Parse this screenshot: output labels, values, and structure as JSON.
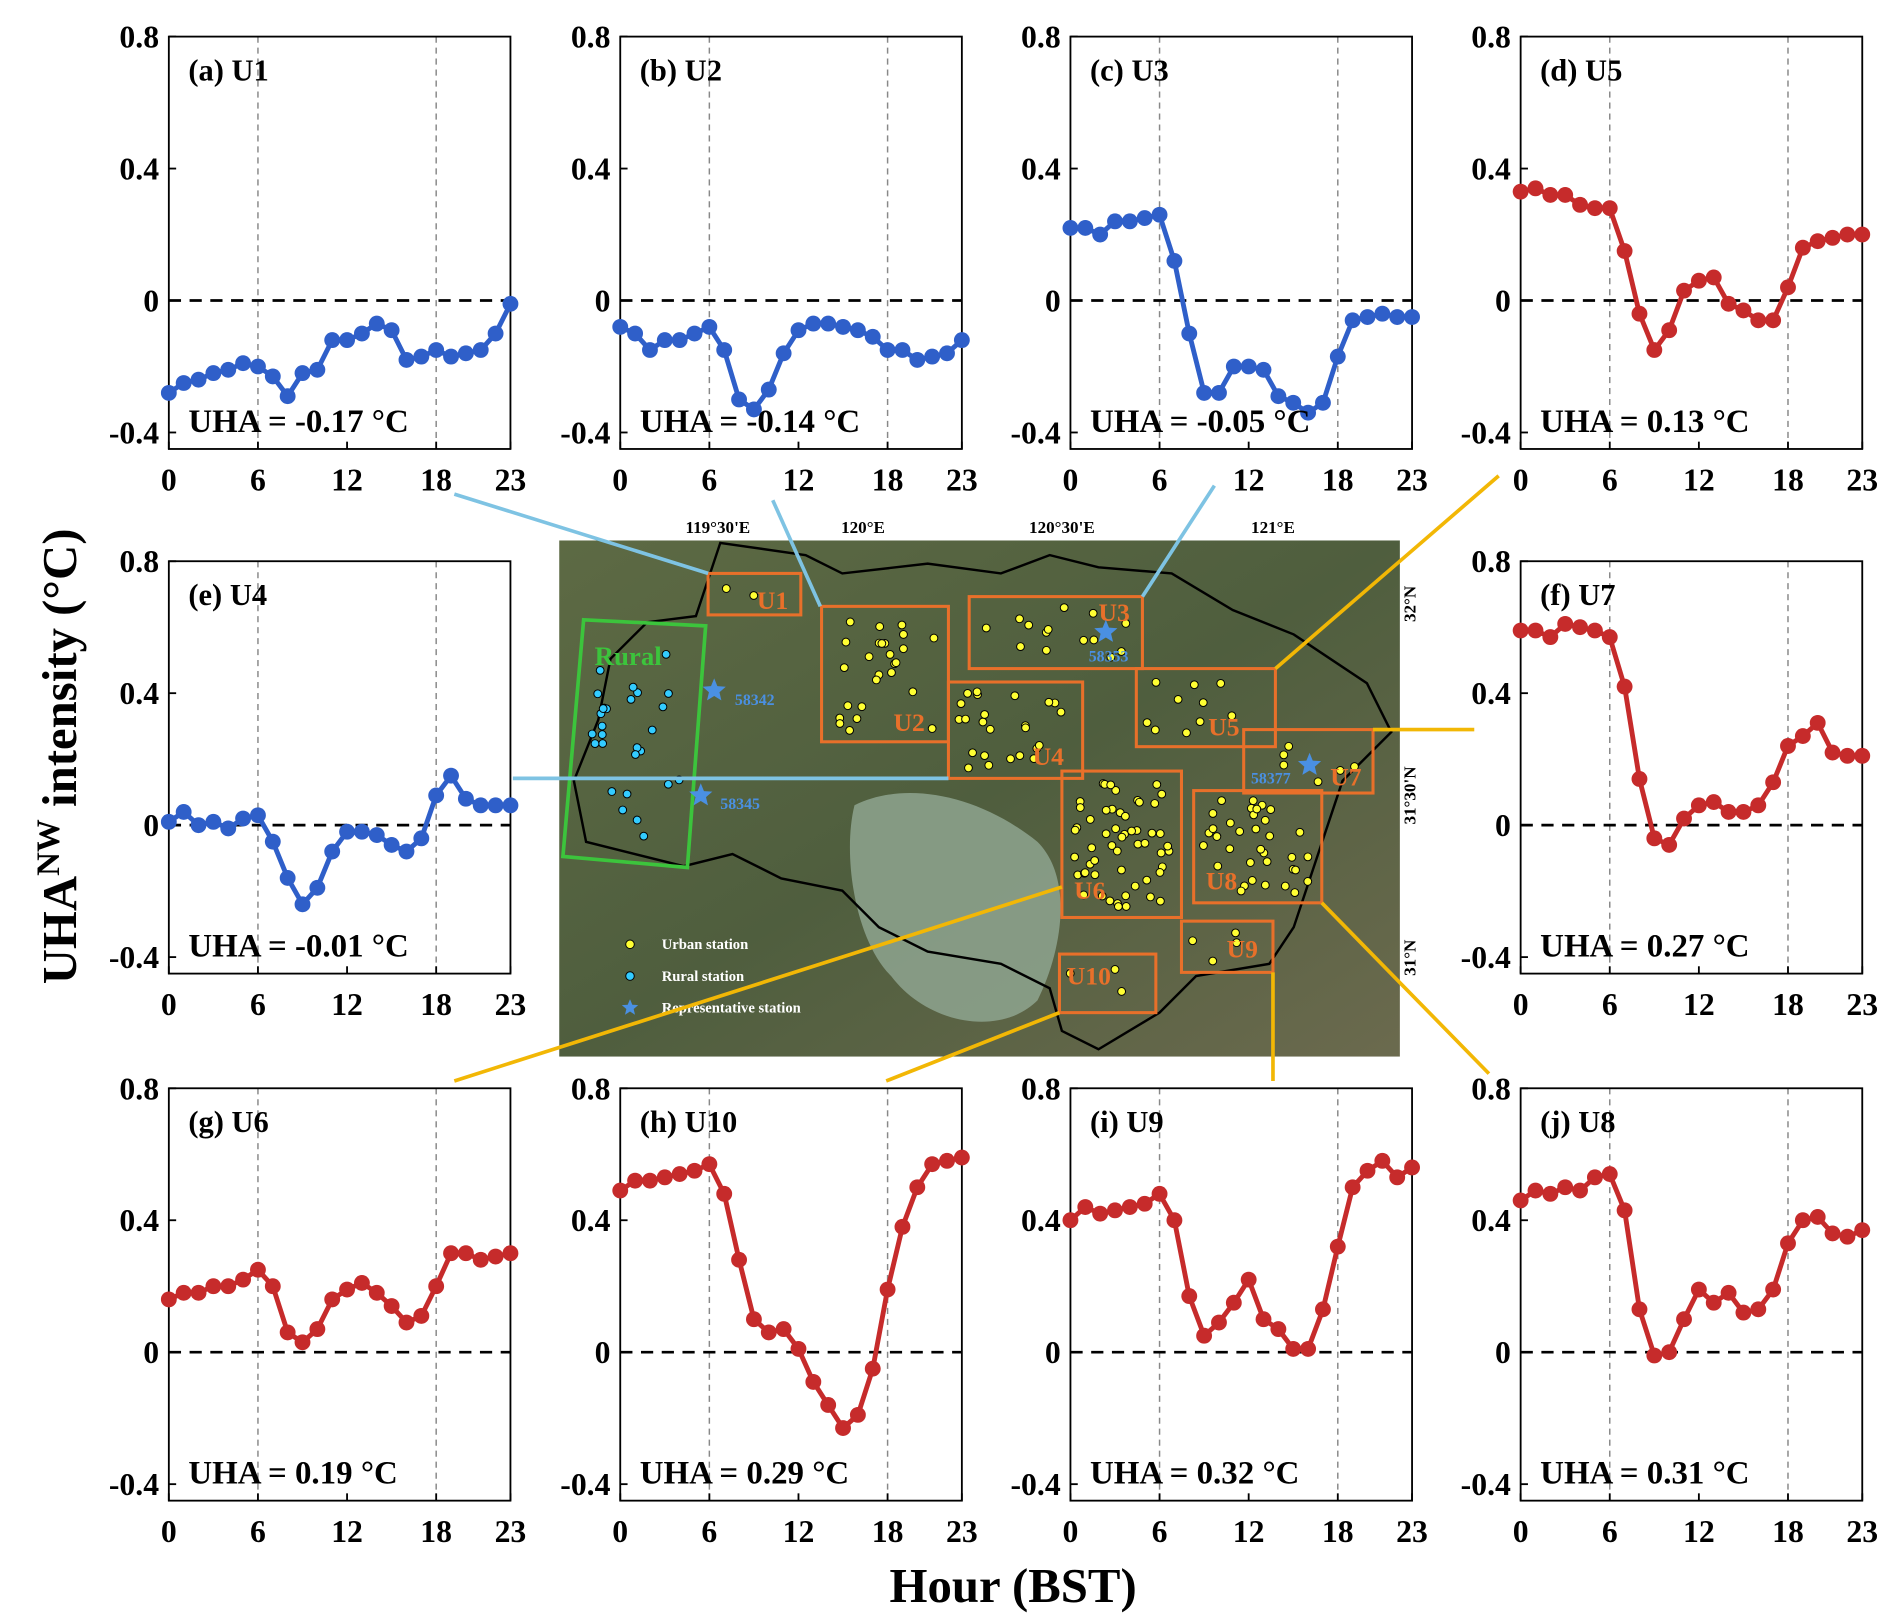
{
  "ylabel": {
    "main": "UHA",
    "sup": "NW",
    "rest": " intensity (°C)"
  },
  "xlabel": "Hour (BST)",
  "map": {
    "lon_labels": [
      "119°30'E",
      "120°E",
      "120°30'E",
      "121°E"
    ],
    "lat_labels": [
      "32°N",
      "31°30'N",
      "31°N"
    ],
    "regions": [
      "U1",
      "U2",
      "U3",
      "U4",
      "U5",
      "U6",
      "U7",
      "U8",
      "U9",
      "U10"
    ],
    "rural_label": "Rural",
    "stations": [
      "58353",
      "58342",
      "58345",
      "58377"
    ],
    "legend": [
      "Urban station",
      "Rural station",
      "Representative station"
    ]
  },
  "chart_data": [
    {
      "type": "line",
      "title": "(a) U1",
      "annotation": "UHA = -0.17 °C",
      "color": "#2f5fc9",
      "x": [
        0,
        1,
        2,
        3,
        4,
        5,
        6,
        7,
        8,
        9,
        10,
        11,
        12,
        13,
        14,
        15,
        16,
        17,
        18,
        19,
        20,
        21,
        22,
        23
      ],
      "values": [
        -0.28,
        -0.25,
        -0.24,
        -0.22,
        -0.21,
        -0.19,
        -0.2,
        -0.23,
        -0.29,
        -0.22,
        -0.21,
        -0.12,
        -0.12,
        -0.1,
        -0.07,
        -0.09,
        -0.18,
        -0.17,
        -0.15,
        -0.17,
        -0.16,
        -0.15,
        -0.1,
        -0.01
      ],
      "xlim": [
        0,
        23
      ],
      "xticks": [
        0,
        6,
        12,
        18,
        23
      ],
      "ylim": [
        -0.45,
        0.8
      ],
      "yticks": [
        -0.4,
        0,
        0.4,
        0.8
      ],
      "vlines": [
        6,
        18
      ],
      "hline": 0
    },
    {
      "type": "line",
      "title": "(b) U2",
      "annotation": "UHA = -0.14 °C",
      "color": "#2f5fc9",
      "x": [
        0,
        1,
        2,
        3,
        4,
        5,
        6,
        7,
        8,
        9,
        10,
        11,
        12,
        13,
        14,
        15,
        16,
        17,
        18,
        19,
        20,
        21,
        22,
        23
      ],
      "values": [
        -0.08,
        -0.1,
        -0.15,
        -0.12,
        -0.12,
        -0.1,
        -0.08,
        -0.15,
        -0.3,
        -0.33,
        -0.27,
        -0.16,
        -0.09,
        -0.07,
        -0.07,
        -0.08,
        -0.09,
        -0.11,
        -0.15,
        -0.15,
        -0.18,
        -0.17,
        -0.16,
        -0.12
      ],
      "xlim": [
        0,
        23
      ],
      "xticks": [
        0,
        6,
        12,
        18,
        23
      ],
      "ylim": [
        -0.45,
        0.8
      ],
      "yticks": [
        -0.4,
        0,
        0.4,
        0.8
      ],
      "vlines": [
        6,
        18
      ],
      "hline": 0
    },
    {
      "type": "line",
      "title": "(c) U3",
      "annotation": "UHA = -0.05 °C",
      "color": "#2f5fc9",
      "x": [
        0,
        1,
        2,
        3,
        4,
        5,
        6,
        7,
        8,
        9,
        10,
        11,
        12,
        13,
        14,
        15,
        16,
        17,
        18,
        19,
        20,
        21,
        22,
        23
      ],
      "values": [
        0.22,
        0.22,
        0.2,
        0.24,
        0.24,
        0.25,
        0.26,
        0.12,
        -0.1,
        -0.28,
        -0.28,
        -0.2,
        -0.2,
        -0.21,
        -0.29,
        -0.31,
        -0.34,
        -0.31,
        -0.17,
        -0.06,
        -0.05,
        -0.04,
        -0.05,
        -0.05
      ],
      "xlim": [
        0,
        23
      ],
      "xticks": [
        0,
        6,
        12,
        18,
        23
      ],
      "ylim": [
        -0.45,
        0.8
      ],
      "yticks": [
        -0.4,
        0,
        0.4,
        0.8
      ],
      "vlines": [
        6,
        18
      ],
      "hline": 0
    },
    {
      "type": "line",
      "title": "(d) U5",
      "annotation": "UHA = 0.13 °C",
      "color": "#c62b2b",
      "x": [
        0,
        1,
        2,
        3,
        4,
        5,
        6,
        7,
        8,
        9,
        10,
        11,
        12,
        13,
        14,
        15,
        16,
        17,
        18,
        19,
        20,
        21,
        22,
        23
      ],
      "values": [
        0.33,
        0.34,
        0.32,
        0.32,
        0.29,
        0.28,
        0.28,
        0.15,
        -0.04,
        -0.15,
        -0.09,
        0.03,
        0.06,
        0.07,
        -0.01,
        -0.03,
        -0.06,
        -0.06,
        0.04,
        0.16,
        0.18,
        0.19,
        0.2,
        0.2
      ],
      "xlim": [
        0,
        23
      ],
      "xticks": [
        0,
        6,
        12,
        18,
        23
      ],
      "ylim": [
        -0.45,
        0.8
      ],
      "yticks": [
        -0.4,
        0,
        0.4,
        0.8
      ],
      "vlines": [
        6,
        18
      ],
      "hline": 0
    },
    {
      "type": "line",
      "title": "(e) U4",
      "annotation": "UHA = -0.01 °C",
      "color": "#2f5fc9",
      "x": [
        0,
        1,
        2,
        3,
        4,
        5,
        6,
        7,
        8,
        9,
        10,
        11,
        12,
        13,
        14,
        15,
        16,
        17,
        18,
        19,
        20,
        21,
        22,
        23
      ],
      "values": [
        0.01,
        0.04,
        0.0,
        0.01,
        -0.01,
        0.02,
        0.03,
        -0.05,
        -0.16,
        -0.24,
        -0.19,
        -0.08,
        -0.02,
        -0.02,
        -0.03,
        -0.06,
        -0.08,
        -0.04,
        0.09,
        0.15,
        0.08,
        0.06,
        0.06,
        0.06
      ],
      "xlim": [
        0,
        23
      ],
      "xticks": [
        0,
        6,
        12,
        18,
        23
      ],
      "ylim": [
        -0.45,
        0.8
      ],
      "yticks": [
        -0.4,
        0,
        0.4,
        0.8
      ],
      "vlines": [
        6,
        18
      ],
      "hline": 0
    },
    {
      "type": "line",
      "title": "(f) U7",
      "annotation": "UHA = 0.27 °C",
      "color": "#c62b2b",
      "x": [
        0,
        1,
        2,
        3,
        4,
        5,
        6,
        7,
        8,
        9,
        10,
        11,
        12,
        13,
        14,
        15,
        16,
        17,
        18,
        19,
        20,
        21,
        22,
        23
      ],
      "values": [
        0.59,
        0.59,
        0.57,
        0.61,
        0.6,
        0.59,
        0.57,
        0.42,
        0.14,
        -0.04,
        -0.06,
        0.02,
        0.06,
        0.07,
        0.04,
        0.04,
        0.06,
        0.13,
        0.24,
        0.27,
        0.31,
        0.22,
        0.21,
        0.21
      ],
      "xlim": [
        0,
        23
      ],
      "xticks": [
        0,
        6,
        12,
        18,
        23
      ],
      "ylim": [
        -0.45,
        0.8
      ],
      "yticks": [
        -0.4,
        0,
        0.4,
        0.8
      ],
      "vlines": [
        6,
        18
      ],
      "hline": 0
    },
    {
      "type": "line",
      "title": "(g) U6",
      "annotation": "UHA = 0.19 °C",
      "color": "#c62b2b",
      "x": [
        0,
        1,
        2,
        3,
        4,
        5,
        6,
        7,
        8,
        9,
        10,
        11,
        12,
        13,
        14,
        15,
        16,
        17,
        18,
        19,
        20,
        21,
        22,
        23
      ],
      "values": [
        0.16,
        0.18,
        0.18,
        0.2,
        0.2,
        0.22,
        0.25,
        0.2,
        0.06,
        0.03,
        0.07,
        0.16,
        0.19,
        0.21,
        0.18,
        0.14,
        0.09,
        0.11,
        0.2,
        0.3,
        0.3,
        0.28,
        0.29,
        0.3
      ],
      "xlim": [
        0,
        23
      ],
      "xticks": [
        0,
        6,
        12,
        18,
        23
      ],
      "ylim": [
        -0.45,
        0.8
      ],
      "yticks": [
        -0.4,
        0,
        0.4,
        0.8
      ],
      "vlines": [
        6,
        18
      ],
      "hline": 0
    },
    {
      "type": "line",
      "title": "(h) U10",
      "annotation": "UHA = 0.29 °C",
      "color": "#c62b2b",
      "x": [
        0,
        1,
        2,
        3,
        4,
        5,
        6,
        7,
        8,
        9,
        10,
        11,
        12,
        13,
        14,
        15,
        16,
        17,
        18,
        19,
        20,
        21,
        22,
        23
      ],
      "values": [
        0.49,
        0.52,
        0.52,
        0.53,
        0.54,
        0.55,
        0.57,
        0.48,
        0.28,
        0.1,
        0.06,
        0.07,
        0.01,
        -0.09,
        -0.16,
        -0.23,
        -0.19,
        -0.05,
        0.19,
        0.38,
        0.5,
        0.57,
        0.58,
        0.59
      ],
      "xlim": [
        0,
        23
      ],
      "xticks": [
        0,
        6,
        12,
        18,
        23
      ],
      "ylim": [
        -0.45,
        0.8
      ],
      "yticks": [
        -0.4,
        0,
        0.4,
        0.8
      ],
      "vlines": [
        6,
        18
      ],
      "hline": 0
    },
    {
      "type": "line",
      "title": "(i) U9",
      "annotation": "UHA = 0.32 °C",
      "color": "#c62b2b",
      "x": [
        0,
        1,
        2,
        3,
        4,
        5,
        6,
        7,
        8,
        9,
        10,
        11,
        12,
        13,
        14,
        15,
        16,
        17,
        18,
        19,
        20,
        21,
        22,
        23
      ],
      "values": [
        0.4,
        0.44,
        0.42,
        0.43,
        0.44,
        0.45,
        0.48,
        0.4,
        0.17,
        0.05,
        0.09,
        0.15,
        0.22,
        0.1,
        0.07,
        0.01,
        0.01,
        0.13,
        0.32,
        0.5,
        0.55,
        0.58,
        0.53,
        0.56
      ],
      "xlim": [
        0,
        23
      ],
      "xticks": [
        0,
        6,
        12,
        18,
        23
      ],
      "ylim": [
        -0.45,
        0.8
      ],
      "yticks": [
        -0.4,
        0,
        0.4,
        0.8
      ],
      "vlines": [
        6,
        18
      ],
      "hline": 0
    },
    {
      "type": "line",
      "title": "(j) U8",
      "annotation": "UHA = 0.31 °C",
      "color": "#c62b2b",
      "x": [
        0,
        1,
        2,
        3,
        4,
        5,
        6,
        7,
        8,
        9,
        10,
        11,
        12,
        13,
        14,
        15,
        16,
        17,
        18,
        19,
        20,
        21,
        22,
        23
      ],
      "values": [
        0.46,
        0.49,
        0.48,
        0.5,
        0.49,
        0.53,
        0.54,
        0.43,
        0.13,
        -0.01,
        0.0,
        0.1,
        0.19,
        0.15,
        0.18,
        0.12,
        0.13,
        0.19,
        0.33,
        0.4,
        0.41,
        0.36,
        0.35,
        0.37
      ],
      "xlim": [
        0,
        23
      ],
      "xticks": [
        0,
        6,
        12,
        18,
        23
      ],
      "ylim": [
        -0.45,
        0.8
      ],
      "yticks": [
        -0.4,
        0,
        0.4,
        0.8
      ],
      "vlines": [
        6,
        18
      ],
      "hline": 0
    }
  ]
}
